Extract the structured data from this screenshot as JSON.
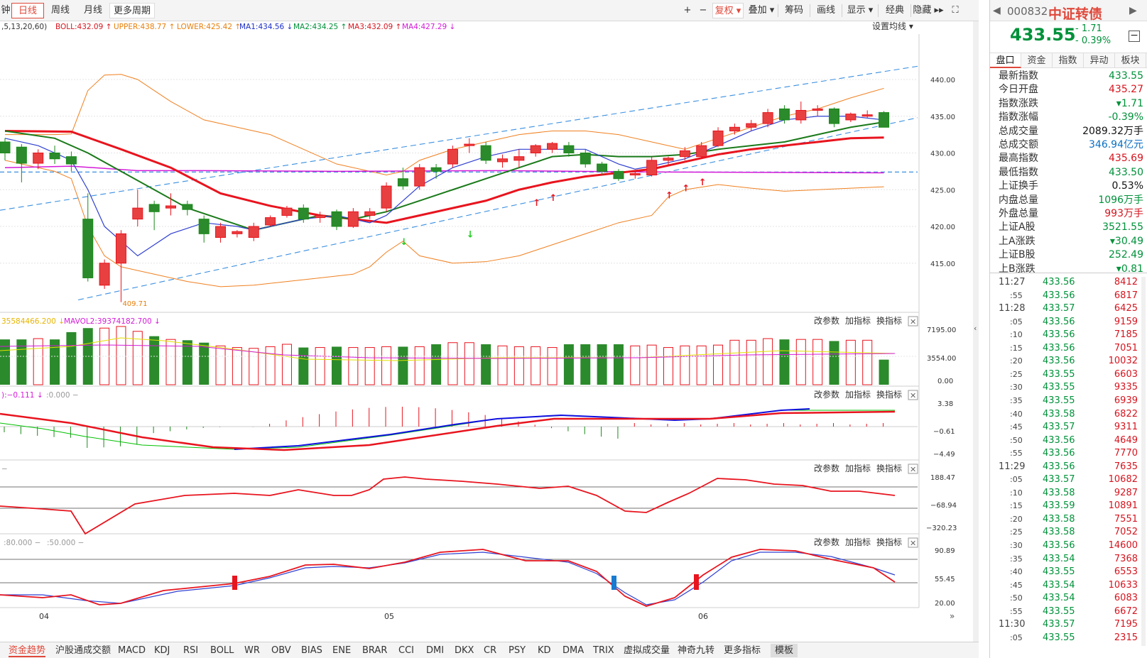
{
  "toolbar": {
    "items": [
      "钟",
      "日线",
      "周线",
      "月线",
      "更多周期 ▾"
    ],
    "right_items": [
      "+",
      "−",
      "复权 ▾",
      "叠加 ▾",
      "筹码",
      "画线",
      "显示 ▾",
      "经典",
      "隐藏 ▸▸",
      "⛶"
    ]
  },
  "indicator_line": {
    "params": ",5,13,20,60)",
    "boll": "BOLL:432.09 ↑",
    "upper": "UPPER:438.77 ↑",
    "lower": "LOWER:425.42 ↑",
    "ma1": "MA1:434.56 ↓",
    "ma2": "MA2:434.25 ↑",
    "ma3": "MA3:432.09 ↑",
    "ma4": "MA4:427.29 ↓",
    "settings": "设置均线 ▾"
  },
  "price_axis": [
    "440.00",
    "435.00",
    "430.00",
    "425.00",
    "420.00",
    "415.00"
  ],
  "low_marker": "409.71",
  "vol_panel": {
    "legend1": "35584466.200 ↓",
    "legend2": "MAVOL2:39374182.700 ↓",
    "axis": [
      "7195.00",
      "3554.00",
      "0.00"
    ]
  },
  "macd_panel": {
    "legend1": "):−0.111 ↓",
    "legend2": ":0.000 −",
    "axis": [
      "3.38",
      "−0.61",
      "−4.49"
    ]
  },
  "cci_panel": {
    "legend1": "−",
    "axis": [
      "188.47",
      "−68.94",
      "−320.23"
    ]
  },
  "kdj_panel": {
    "legend1": ":80.000 −",
    "legend2": ":50.000 −",
    "axis": [
      "90.89",
      "55.45",
      "20.00"
    ]
  },
  "panel_controls": [
    "改参数",
    "加指标",
    "换指标",
    "✕"
  ],
  "date_axis": [
    "04",
    "05",
    "06"
  ],
  "bottom_tabs": [
    "资金趋势",
    "沪股通成交额",
    "MACD",
    "KDJ",
    "RSI",
    "BOLL",
    "WR",
    "OBV",
    "BIAS",
    "ENE",
    "BRAR",
    "CCI",
    "DMI",
    "DKX",
    "CR",
    "PSY",
    "KD",
    "DMA",
    "TRIX",
    "虚拟成交量",
    "神奇九转",
    "更多指标",
    "模板"
  ],
  "quote": {
    "code": "000832",
    "name": "中证转债",
    "price": "433.55",
    "change": "- 1.71",
    "change_pct": "- 0.39%",
    "tabs": [
      "盘口",
      "资金",
      "指数",
      "异动",
      "板块"
    ],
    "stats": [
      {
        "k": "最新指数",
        "v": "433.55",
        "c": "green"
      },
      {
        "k": "今日开盘",
        "v": "435.27",
        "c": "red"
      },
      {
        "k": "指数涨跌",
        "v": "▾1.71",
        "c": "green"
      },
      {
        "k": "指数涨幅",
        "v": "-0.39%",
        "c": "green"
      },
      {
        "k": "总成交量",
        "v": "2089.32万手",
        "c": "black"
      },
      {
        "k": "总成交额",
        "v": "346.94亿元",
        "c": "blue"
      },
      {
        "k": "最高指数",
        "v": "435.69",
        "c": "red"
      },
      {
        "k": "最低指数",
        "v": "433.50",
        "c": "green"
      },
      {
        "k": "上证换手",
        "v": "0.53%",
        "c": "black"
      },
      {
        "k": "内盘总量",
        "v": "1096万手",
        "c": "green"
      },
      {
        "k": "外盘总量",
        "v": "993万手",
        "c": "red"
      },
      {
        "k": "上证A股",
        "v": "3521.55",
        "c": "green"
      },
      {
        "k": "上A涨跌",
        "v": "▾30.49",
        "c": "green"
      },
      {
        "k": "上证B股",
        "v": "252.49",
        "c": "green"
      },
      {
        "k": "上B涨跌",
        "v": "▾0.81",
        "c": "green"
      }
    ],
    "ticks": [
      {
        "t": "11:27",
        "p": "433.56",
        "v": "8412"
      },
      {
        "t": ":55",
        "p": "433.56",
        "v": "6817"
      },
      {
        "t": "11:28",
        "p": "433.57",
        "v": "6425"
      },
      {
        "t": ":05",
        "p": "433.56",
        "v": "9159"
      },
      {
        "t": ":10",
        "p": "433.56",
        "v": "7185"
      },
      {
        "t": ":15",
        "p": "433.56",
        "v": "7051"
      },
      {
        "t": ":20",
        "p": "433.56",
        "v": "10032"
      },
      {
        "t": ":25",
        "p": "433.55",
        "v": "6603"
      },
      {
        "t": ":30",
        "p": "433.55",
        "v": "9335"
      },
      {
        "t": ":35",
        "p": "433.55",
        "v": "6939"
      },
      {
        "t": ":40",
        "p": "433.58",
        "v": "6822"
      },
      {
        "t": ":45",
        "p": "433.57",
        "v": "9311"
      },
      {
        "t": ":50",
        "p": "433.56",
        "v": "4649"
      },
      {
        "t": ":55",
        "p": "433.56",
        "v": "7770"
      },
      {
        "t": "11:29",
        "p": "433.56",
        "v": "7635"
      },
      {
        "t": ":05",
        "p": "433.57",
        "v": "10682"
      },
      {
        "t": ":10",
        "p": "433.58",
        "v": "9287"
      },
      {
        "t": ":15",
        "p": "433.59",
        "v": "10891"
      },
      {
        "t": ":20",
        "p": "433.58",
        "v": "7551"
      },
      {
        "t": ":25",
        "p": "433.58",
        "v": "7052"
      },
      {
        "t": ":30",
        "p": "433.56",
        "v": "14600"
      },
      {
        "t": ":35",
        "p": "433.54",
        "v": "7368"
      },
      {
        "t": ":40",
        "p": "433.55",
        "v": "6553"
      },
      {
        "t": ":45",
        "p": "433.54",
        "v": "10633"
      },
      {
        "t": ":50",
        "p": "433.54",
        "v": "6083"
      },
      {
        "t": ":55",
        "p": "433.55",
        "v": "6672"
      },
      {
        "t": "11:30",
        "p": "433.57",
        "v": "7195"
      },
      {
        "t": ":05",
        "p": "433.55",
        "v": "2315"
      }
    ]
  },
  "candles": [
    {
      "o": 431.5,
      "c": 430.0,
      "h": 432.0,
      "l": 429.0
    },
    {
      "o": 430.8,
      "c": 428.6,
      "h": 431.2,
      "l": 426.0
    },
    {
      "o": 428.6,
      "c": 430.0,
      "h": 430.5,
      "l": 427.8
    },
    {
      "o": 430.0,
      "c": 429.2,
      "h": 431.0,
      "l": 428.5
    },
    {
      "o": 429.5,
      "c": 428.5,
      "h": 430.2,
      "l": 427.5
    },
    {
      "o": 421.0,
      "c": 413.0,
      "h": 424.5,
      "l": 412.5
    },
    {
      "o": 412.0,
      "c": 415.0,
      "h": 415.5,
      "l": 411.5
    },
    {
      "o": 415.0,
      "c": 419.0,
      "h": 419.5,
      "l": 409.7
    },
    {
      "o": 421.0,
      "c": 422.5,
      "h": 425.0,
      "l": 420.0
    },
    {
      "o": 423.0,
      "c": 422.0,
      "h": 423.5,
      "l": 419.5
    },
    {
      "o": 422.5,
      "c": 422.8,
      "h": 424.5,
      "l": 421.5
    },
    {
      "o": 423.0,
      "c": 422.3,
      "h": 423.5,
      "l": 421.5
    },
    {
      "o": 421.0,
      "c": 419.0,
      "h": 421.5,
      "l": 417.8
    },
    {
      "o": 418.5,
      "c": 420.0,
      "h": 420.5,
      "l": 417.8
    },
    {
      "o": 419.0,
      "c": 419.3,
      "h": 419.5,
      "l": 418.5
    },
    {
      "o": 418.5,
      "c": 420.0,
      "h": 420.5,
      "l": 418.0
    },
    {
      "o": 420.2,
      "c": 421.2,
      "h": 421.5,
      "l": 420.0
    },
    {
      "o": 421.5,
      "c": 422.5,
      "h": 422.8,
      "l": 421.2
    },
    {
      "o": 422.5,
      "c": 421.0,
      "h": 423.0,
      "l": 420.5
    },
    {
      "o": 421.2,
      "c": 421.5,
      "h": 422.0,
      "l": 420.5
    },
    {
      "o": 422.0,
      "c": 420.0,
      "h": 422.3,
      "l": 419.5
    },
    {
      "o": 420.0,
      "c": 422.0,
      "h": 422.5,
      "l": 419.8
    },
    {
      "o": 421.5,
      "c": 422.0,
      "h": 422.5,
      "l": 421.0
    },
    {
      "o": 422.5,
      "c": 425.5,
      "h": 426.0,
      "l": 422.0
    },
    {
      "o": 426.5,
      "c": 425.5,
      "h": 428.0,
      "l": 425.0
    },
    {
      "o": 425.5,
      "c": 428.0,
      "h": 428.5,
      "l": 425.0
    },
    {
      "o": 428.0,
      "c": 427.5,
      "h": 428.5,
      "l": 426.5
    },
    {
      "o": 428.5,
      "c": 430.5,
      "h": 431.0,
      "l": 428.0
    },
    {
      "o": 431.0,
      "c": 431.2,
      "h": 432.0,
      "l": 430.0
    },
    {
      "o": 431.0,
      "c": 429.0,
      "h": 431.5,
      "l": 428.5
    },
    {
      "o": 428.8,
      "c": 429.2,
      "h": 429.8,
      "l": 428.0
    },
    {
      "o": 429.0,
      "c": 429.5,
      "h": 430.5,
      "l": 428.0
    },
    {
      "o": 430.0,
      "c": 431.0,
      "h": 431.2,
      "l": 429.5
    },
    {
      "o": 430.5,
      "c": 431.3,
      "h": 431.5,
      "l": 430.0
    },
    {
      "o": 431.0,
      "c": 430.0,
      "h": 431.5,
      "l": 429.5
    },
    {
      "o": 430.0,
      "c": 428.5,
      "h": 430.5,
      "l": 428.0
    },
    {
      "o": 428.5,
      "c": 427.5,
      "h": 428.8,
      "l": 427.0
    },
    {
      "o": 427.5,
      "c": 426.5,
      "h": 427.8,
      "l": 426.2
    },
    {
      "o": 427.0,
      "c": 427.2,
      "h": 427.5,
      "l": 426.5
    },
    {
      "o": 427.0,
      "c": 429.0,
      "h": 429.5,
      "l": 426.8
    },
    {
      "o": 429.0,
      "c": 429.3,
      "h": 429.5,
      "l": 428.2
    },
    {
      "o": 429.5,
      "c": 430.3,
      "h": 430.8,
      "l": 429.0
    },
    {
      "o": 429.5,
      "c": 431.0,
      "h": 431.5,
      "l": 429.2
    },
    {
      "o": 431.0,
      "c": 433.0,
      "h": 433.5,
      "l": 430.8
    },
    {
      "o": 433.0,
      "c": 433.5,
      "h": 434.0,
      "l": 432.5
    },
    {
      "o": 433.5,
      "c": 434.0,
      "h": 434.5,
      "l": 433.0
    },
    {
      "o": 434.0,
      "c": 435.5,
      "h": 436.0,
      "l": 433.5
    },
    {
      "o": 436.0,
      "c": 434.5,
      "h": 436.5,
      "l": 434.0
    },
    {
      "o": 434.5,
      "c": 435.8,
      "h": 437.0,
      "l": 434.0
    },
    {
      "o": 435.8,
      "c": 436.0,
      "h": 436.5,
      "l": 435.0
    },
    {
      "o": 436.0,
      "c": 434.0,
      "h": 436.2,
      "l": 433.5
    },
    {
      "o": 434.5,
      "c": 435.3,
      "h": 435.5,
      "l": 434.2
    },
    {
      "o": 435.0,
      "c": 435.2,
      "h": 435.8,
      "l": 434.8
    },
    {
      "o": 435.5,
      "c": 433.5,
      "h": 435.7,
      "l": 433.5
    }
  ]
}
